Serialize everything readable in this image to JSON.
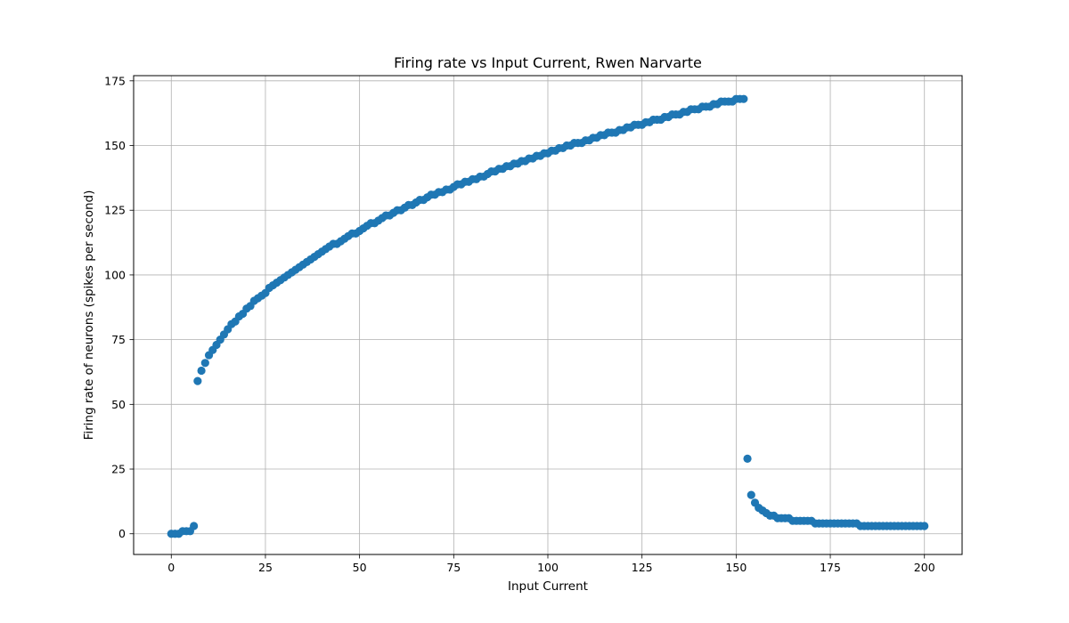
{
  "chart_data": {
    "type": "scatter",
    "title": "Firing rate  vs Input Current, Rwen Narvarte",
    "xlabel": "Input Current",
    "ylabel": "Firing rate of neurons (spikes per second)",
    "xlim": [
      -10,
      210
    ],
    "ylim": [
      -8,
      177
    ],
    "xticks": [
      0,
      25,
      50,
      75,
      100,
      125,
      150,
      175,
      200
    ],
    "yticks": [
      0,
      25,
      50,
      75,
      100,
      125,
      150,
      175
    ],
    "grid": true,
    "marker_color": "#1f77b4",
    "points": [
      [
        0,
        0
      ],
      [
        1,
        0
      ],
      [
        2,
        0
      ],
      [
        3,
        1
      ],
      [
        4,
        1
      ],
      [
        5,
        1
      ],
      [
        6,
        3
      ],
      [
        7,
        59
      ],
      [
        8,
        63
      ],
      [
        9,
        66
      ],
      [
        10,
        69
      ],
      [
        11,
        71
      ],
      [
        12,
        73
      ],
      [
        13,
        75
      ],
      [
        14,
        77
      ],
      [
        15,
        79
      ],
      [
        16,
        81
      ],
      [
        17,
        82
      ],
      [
        18,
        84
      ],
      [
        19,
        85
      ],
      [
        20,
        87
      ],
      [
        21,
        88
      ],
      [
        22,
        90
      ],
      [
        23,
        91
      ],
      [
        24,
        92
      ],
      [
        25,
        93
      ],
      [
        26,
        95
      ],
      [
        27,
        96
      ],
      [
        28,
        97
      ],
      [
        29,
        98
      ],
      [
        30,
        99
      ],
      [
        31,
        100
      ],
      [
        32,
        101
      ],
      [
        33,
        102
      ],
      [
        34,
        103
      ],
      [
        35,
        104
      ],
      [
        36,
        105
      ],
      [
        37,
        106
      ],
      [
        38,
        107
      ],
      [
        39,
        108
      ],
      [
        40,
        109
      ],
      [
        41,
        110
      ],
      [
        42,
        111
      ],
      [
        43,
        112
      ],
      [
        44,
        112
      ],
      [
        45,
        113
      ],
      [
        46,
        114
      ],
      [
        47,
        115
      ],
      [
        48,
        116
      ],
      [
        49,
        116
      ],
      [
        50,
        117
      ],
      [
        51,
        118
      ],
      [
        52,
        119
      ],
      [
        53,
        120
      ],
      [
        54,
        120
      ],
      [
        55,
        121
      ],
      [
        56,
        122
      ],
      [
        57,
        123
      ],
      [
        58,
        123
      ],
      [
        59,
        124
      ],
      [
        60,
        125
      ],
      [
        61,
        125
      ],
      [
        62,
        126
      ],
      [
        63,
        127
      ],
      [
        64,
        127
      ],
      [
        65,
        128
      ],
      [
        66,
        129
      ],
      [
        67,
        129
      ],
      [
        68,
        130
      ],
      [
        69,
        131
      ],
      [
        70,
        131
      ],
      [
        71,
        132
      ],
      [
        72,
        132
      ],
      [
        73,
        133
      ],
      [
        74,
        133
      ],
      [
        75,
        134
      ],
      [
        76,
        135
      ],
      [
        77,
        135
      ],
      [
        78,
        136
      ],
      [
        79,
        136
      ],
      [
        80,
        137
      ],
      [
        81,
        137
      ],
      [
        82,
        138
      ],
      [
        83,
        138
      ],
      [
        84,
        139
      ],
      [
        85,
        140
      ],
      [
        86,
        140
      ],
      [
        87,
        141
      ],
      [
        88,
        141
      ],
      [
        89,
        142
      ],
      [
        90,
        142
      ],
      [
        91,
        143
      ],
      [
        92,
        143
      ],
      [
        93,
        144
      ],
      [
        94,
        144
      ],
      [
        95,
        145
      ],
      [
        96,
        145
      ],
      [
        97,
        146
      ],
      [
        98,
        146
      ],
      [
        99,
        147
      ],
      [
        100,
        147
      ],
      [
        101,
        148
      ],
      [
        102,
        148
      ],
      [
        103,
        149
      ],
      [
        104,
        149
      ],
      [
        105,
        150
      ],
      [
        106,
        150
      ],
      [
        107,
        151
      ],
      [
        108,
        151
      ],
      [
        109,
        151
      ],
      [
        110,
        152
      ],
      [
        111,
        152
      ],
      [
        112,
        153
      ],
      [
        113,
        153
      ],
      [
        114,
        154
      ],
      [
        115,
        154
      ],
      [
        116,
        155
      ],
      [
        117,
        155
      ],
      [
        118,
        155
      ],
      [
        119,
        156
      ],
      [
        120,
        156
      ],
      [
        121,
        157
      ],
      [
        122,
        157
      ],
      [
        123,
        158
      ],
      [
        124,
        158
      ],
      [
        125,
        158
      ],
      [
        126,
        159
      ],
      [
        127,
        159
      ],
      [
        128,
        160
      ],
      [
        129,
        160
      ],
      [
        130,
        160
      ],
      [
        131,
        161
      ],
      [
        132,
        161
      ],
      [
        133,
        162
      ],
      [
        134,
        162
      ],
      [
        135,
        162
      ],
      [
        136,
        163
      ],
      [
        137,
        163
      ],
      [
        138,
        164
      ],
      [
        139,
        164
      ],
      [
        140,
        164
      ],
      [
        141,
        165
      ],
      [
        142,
        165
      ],
      [
        143,
        165
      ],
      [
        144,
        166
      ],
      [
        145,
        166
      ],
      [
        146,
        167
      ],
      [
        147,
        167
      ],
      [
        148,
        167
      ],
      [
        149,
        167
      ],
      [
        150,
        168
      ],
      [
        151,
        168
      ],
      [
        152,
        168
      ],
      [
        153,
        29
      ],
      [
        154,
        15
      ],
      [
        155,
        12
      ],
      [
        156,
        10
      ],
      [
        157,
        9
      ],
      [
        158,
        8
      ],
      [
        159,
        7
      ],
      [
        160,
        7
      ],
      [
        161,
        6
      ],
      [
        162,
        6
      ],
      [
        163,
        6
      ],
      [
        164,
        6
      ],
      [
        165,
        5
      ],
      [
        166,
        5
      ],
      [
        167,
        5
      ],
      [
        168,
        5
      ],
      [
        169,
        5
      ],
      [
        170,
        5
      ],
      [
        171,
        4
      ],
      [
        172,
        4
      ],
      [
        173,
        4
      ],
      [
        174,
        4
      ],
      [
        175,
        4
      ],
      [
        176,
        4
      ],
      [
        177,
        4
      ],
      [
        178,
        4
      ],
      [
        179,
        4
      ],
      [
        180,
        4
      ],
      [
        181,
        4
      ],
      [
        182,
        4
      ],
      [
        183,
        3
      ],
      [
        184,
        3
      ],
      [
        185,
        3
      ],
      [
        186,
        3
      ],
      [
        187,
        3
      ],
      [
        188,
        3
      ],
      [
        189,
        3
      ],
      [
        190,
        3
      ],
      [
        191,
        3
      ],
      [
        192,
        3
      ],
      [
        193,
        3
      ],
      [
        194,
        3
      ],
      [
        195,
        3
      ],
      [
        196,
        3
      ],
      [
        197,
        3
      ],
      [
        198,
        3
      ],
      [
        199,
        3
      ],
      [
        200,
        3
      ]
    ]
  }
}
